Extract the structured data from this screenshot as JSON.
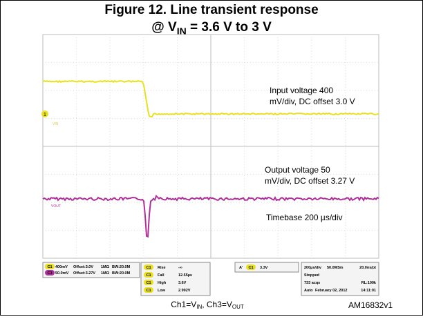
{
  "title": {
    "line1": "Figure 12. Line transient response",
    "line2_prefix": "@ V",
    "line2_sub": "IN",
    "line2_suffix": " = 3.6 V to 3 V"
  },
  "annotations": {
    "input_1": "Input voltage 400",
    "input_2": "mV/div, DC offset 3.0 V",
    "output_1": "Output voltage 50",
    "output_2": "mV/div, DC offset 3.27 V",
    "timebase": "Timebase 200 µs/div"
  },
  "trace_labels": {
    "ch1_marker": "1",
    "vin": "VIN",
    "vout": "VOUT"
  },
  "status": {
    "channels": [
      [
        "C1",
        "400mV",
        "Offset:3.0V",
        "1MΩ",
        "BW:20.0M"
      ],
      [
        "C3",
        "50.0mV",
        "Offset:3.27V",
        "1MΩ",
        "BW:20.0M"
      ]
    ],
    "measurements": [
      [
        "C1",
        "Rise",
        "-∞"
      ],
      [
        "C1",
        "Fall",
        "12.55µs"
      ],
      [
        "C1",
        "High",
        "3.6V"
      ],
      [
        "C1",
        "Low",
        "2.992V"
      ]
    ],
    "trigger": [
      "A'",
      "C1",
      "3.3V"
    ],
    "timebase": [
      "200µs/div",
      "50.0MS/s",
      "20.0ns/pt",
      "Stopped",
      "733 acqs",
      "RL:100k",
      "Auto",
      "February 02, 2012",
      "14:11:01"
    ]
  },
  "caption": {
    "prefix": "Ch1=V",
    "sub1": "IN",
    "middle": ", Ch3=V",
    "sub2": "OUT"
  },
  "figure_id": "AM16832v1"
}
